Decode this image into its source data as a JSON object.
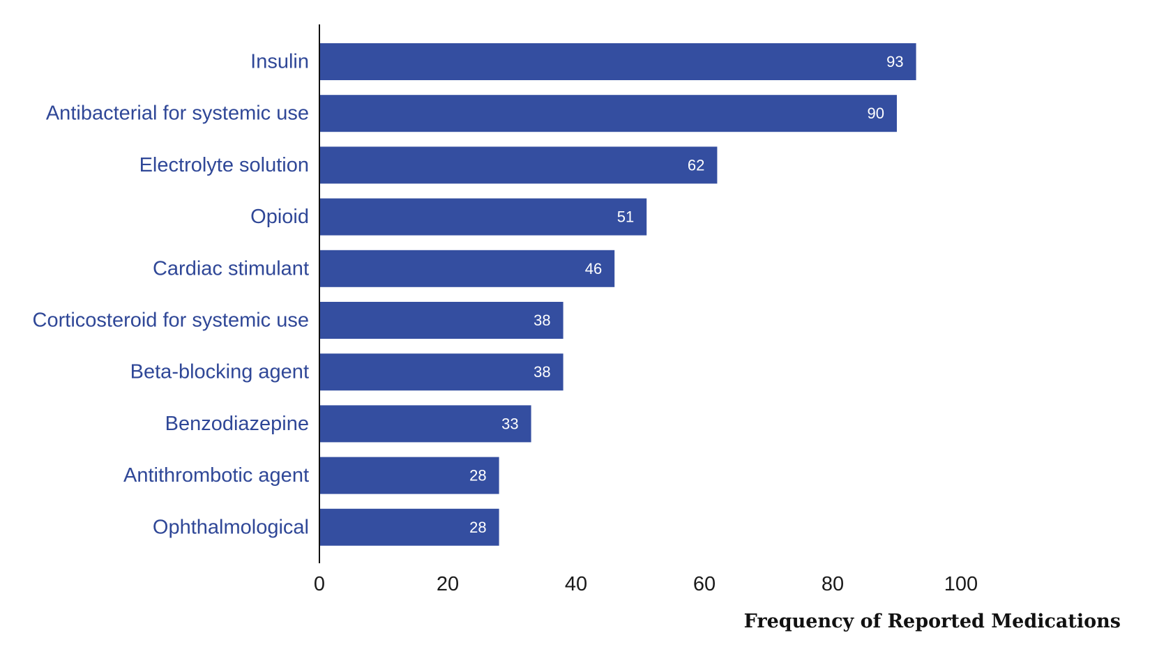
{
  "chart_data": {
    "type": "bar",
    "orientation": "horizontal",
    "categories": [
      "Insulin",
      "Antibacterial for systemic use",
      "Electrolyte solution",
      "Opioid",
      "Cardiac stimulant",
      "Corticosteroid for systemic use",
      "Beta-blocking agent",
      "Benzodiazepine",
      "Antithrombotic agent",
      "Ophthalmological"
    ],
    "values": [
      93,
      90,
      62,
      51,
      46,
      38,
      38,
      33,
      28,
      28
    ],
    "data_labels": [
      "93",
      "90",
      "62",
      "51",
      "46",
      "38",
      "38",
      "33",
      "28",
      "28"
    ],
    "xlabel": "Frequency of Reported Medications",
    "ylabel": "",
    "xlim": [
      0,
      100
    ],
    "xticks": [
      "0",
      "20",
      "40",
      "60",
      "80",
      "100"
    ],
    "grid": false,
    "legend": "none",
    "colors": {
      "bar": "#344ea0",
      "category_text": "#2f4797",
      "value_text": "#ffffff",
      "axis": "#111111"
    }
  }
}
